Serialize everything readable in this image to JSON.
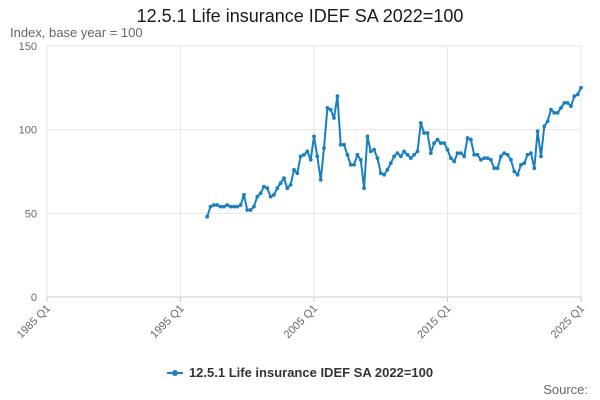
{
  "colors": {
    "series": "#1a7fc1",
    "grid": "#e6e6e6",
    "axis": "#cccccc"
  },
  "source_label": "Source:",
  "chart_data": {
    "type": "line",
    "title": "12.5.1 Life insurance IDEF SA 2022=100",
    "ylabel": "Index, base year = 100",
    "xlabel": "",
    "ylim": [
      0,
      150
    ],
    "xlim": [
      1985.0,
      2025.0
    ],
    "yticks": [
      0,
      50,
      100,
      150
    ],
    "xticks": [
      {
        "value": 1985.0,
        "label": "1985 Q1"
      },
      {
        "value": 1995.0,
        "label": "1995 Q1"
      },
      {
        "value": 2005.0,
        "label": "2005 Q1"
      },
      {
        "value": 2015.0,
        "label": "2015 Q1"
      },
      {
        "value": 2025.0,
        "label": "2025 Q1"
      }
    ],
    "legend": "bottom",
    "series": [
      {
        "name": "12.5.1 Life insurance IDEF SA 2022=100",
        "x": [
          1997.0,
          1997.25,
          1997.5,
          1997.75,
          1998.0,
          1998.25,
          1998.5,
          1998.75,
          1999.0,
          1999.25,
          1999.5,
          1999.75,
          2000.0,
          2000.25,
          2000.5,
          2000.75,
          2001.0,
          2001.25,
          2001.5,
          2001.75,
          2002.0,
          2002.25,
          2002.5,
          2002.75,
          2003.0,
          2003.25,
          2003.5,
          2003.75,
          2004.0,
          2004.25,
          2004.5,
          2004.75,
          2005.0,
          2005.25,
          2005.5,
          2005.75,
          2006.0,
          2006.25,
          2006.5,
          2006.75,
          2007.0,
          2007.25,
          2007.5,
          2007.75,
          2008.0,
          2008.25,
          2008.5,
          2008.75,
          2009.0,
          2009.25,
          2009.5,
          2009.75,
          2010.0,
          2010.25,
          2010.5,
          2010.75,
          2011.0,
          2011.25,
          2011.5,
          2011.75,
          2012.0,
          2012.25,
          2012.5,
          2012.75,
          2013.0,
          2013.25,
          2013.5,
          2013.75,
          2014.0,
          2014.25,
          2014.5,
          2014.75,
          2015.0,
          2015.25,
          2015.5,
          2015.75,
          2016.0,
          2016.25,
          2016.5,
          2016.75,
          2017.0,
          2017.25,
          2017.5,
          2017.75,
          2018.0,
          2018.25,
          2018.5,
          2018.75,
          2019.0,
          2019.25,
          2019.5,
          2019.75,
          2020.0,
          2020.25,
          2020.5,
          2020.75,
          2021.0,
          2021.25,
          2021.5,
          2021.75,
          2022.0,
          2022.25,
          2022.5,
          2022.75,
          2023.0,
          2023.25,
          2023.5,
          2023.75,
          2024.0,
          2024.25,
          2024.5,
          2024.75,
          2025.0
        ],
        "values": [
          48,
          54,
          55,
          55,
          54,
          54,
          55,
          54,
          54,
          54,
          55,
          61,
          52,
          52,
          54,
          60,
          62,
          66,
          65,
          60,
          61,
          65,
          68,
          71,
          65,
          67,
          76,
          74,
          84,
          85,
          87,
          82,
          96,
          84,
          70,
          89,
          113,
          112,
          107,
          120,
          91,
          91,
          85,
          79,
          79,
          85,
          82,
          65,
          96,
          87,
          88,
          83,
          74,
          73,
          76,
          80,
          84,
          86,
          84,
          87,
          85,
          83,
          85,
          87,
          104,
          98,
          98,
          86,
          92,
          94,
          92,
          92,
          88,
          83,
          81,
          86,
          86,
          84,
          95,
          94,
          85,
          85,
          82,
          83,
          83,
          82,
          77,
          77,
          84,
          86,
          85,
          82,
          75,
          73,
          79,
          80,
          85,
          86,
          77,
          99,
          84,
          102,
          105,
          112,
          110,
          110,
          113,
          116,
          116,
          114,
          120,
          121,
          125
        ]
      }
    ]
  }
}
